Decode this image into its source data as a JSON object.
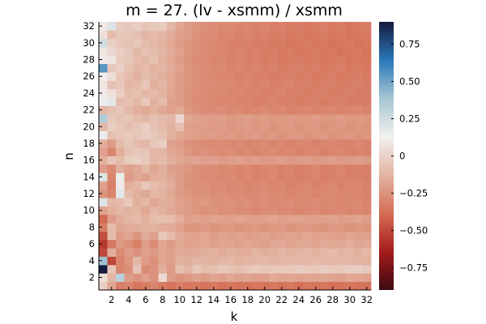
{
  "chart_data": {
    "type": "heatmap",
    "title": "m = 27. (lv - xsmm) / xsmm",
    "xlabel": "k",
    "ylabel": "n",
    "x": [
      1,
      2,
      3,
      4,
      5,
      6,
      7,
      8,
      9,
      10,
      11,
      12,
      13,
      14,
      15,
      16,
      17,
      18,
      19,
      20,
      21,
      22,
      23,
      24,
      25,
      26,
      27,
      28,
      29,
      30,
      31,
      32
    ],
    "y": [
      1,
      2,
      3,
      4,
      5,
      6,
      7,
      8,
      9,
      10,
      11,
      12,
      13,
      14,
      15,
      16,
      17,
      18,
      19,
      20,
      21,
      22,
      23,
      24,
      25,
      26,
      27,
      28,
      29,
      30,
      31,
      32
    ],
    "xticks": [
      2,
      4,
      6,
      8,
      10,
      12,
      14,
      16,
      18,
      20,
      22,
      24,
      26,
      28,
      30,
      32
    ],
    "yticks": [
      2,
      4,
      6,
      8,
      10,
      12,
      14,
      16,
      18,
      20,
      22,
      24,
      26,
      28,
      30,
      32
    ],
    "clim": [
      -0.9,
      0.9
    ],
    "colorbar_ticks": [
      -0.75,
      -0.5,
      -0.25,
      0,
      0.25,
      0.5,
      0.75
    ],
    "colorbar_tick_labels": [
      "−0.75",
      "−0.50",
      "−0.25",
      "0",
      "0.25",
      "0.50",
      "0.75"
    ],
    "colormap": [
      "#3c0911",
      "#a51c1c",
      "#d56d53",
      "#e3b5a3",
      "#f1f0ef",
      "#a6c6d3",
      "#2a78b8",
      "#151a3f"
    ],
    "grid": false,
    "values": [
      [
        -0.02,
        -0.18,
        -0.32,
        -0.3,
        -0.35,
        -0.33,
        -0.3,
        -0.34,
        -0.36,
        -0.33,
        -0.35,
        -0.34,
        -0.36,
        -0.34,
        -0.36,
        -0.35,
        -0.36,
        -0.36,
        -0.35,
        -0.36,
        -0.34,
        -0.36,
        -0.35,
        -0.37,
        -0.35,
        -0.36,
        -0.35,
        -0.37,
        -0.36,
        -0.35,
        -0.36,
        -0.36
      ],
      [
        0.05,
        -0.12,
        0.32,
        -0.22,
        -0.25,
        -0.2,
        -0.25,
        0.02,
        -0.22,
        -0.25,
        -0.23,
        -0.2,
        -0.22,
        -0.19,
        -0.21,
        -0.18,
        -0.2,
        -0.19,
        -0.21,
        -0.2,
        -0.17,
        -0.19,
        -0.18,
        -0.2,
        -0.18,
        -0.19,
        -0.18,
        -0.19,
        -0.2,
        -0.18,
        -0.19,
        -0.2
      ],
      [
        0.9,
        -0.05,
        -0.3,
        -0.26,
        -0.07,
        -0.28,
        -0.25,
        -0.15,
        -0.22,
        -0.08,
        -0.12,
        -0.06,
        -0.1,
        -0.08,
        -0.05,
        -0.07,
        -0.09,
        -0.06,
        -0.04,
        -0.06,
        -0.05,
        -0.04,
        -0.05,
        -0.03,
        -0.04,
        -0.05,
        -0.03,
        -0.04,
        -0.05,
        -0.03,
        -0.02,
        -0.04
      ],
      [
        0.4,
        -0.5,
        -0.3,
        -0.24,
        -0.12,
        -0.22,
        -0.26,
        -0.18,
        -0.2,
        -0.14,
        -0.15,
        -0.12,
        -0.13,
        -0.14,
        -0.12,
        -0.11,
        -0.14,
        -0.13,
        -0.12,
        -0.11,
        -0.13,
        -0.12,
        -0.11,
        -0.12,
        -0.13,
        -0.1,
        -0.12,
        -0.13,
        -0.11,
        -0.12,
        -0.13,
        -0.14
      ],
      [
        -0.5,
        -0.15,
        -0.28,
        -0.22,
        -0.25,
        -0.2,
        -0.22,
        -0.18,
        -0.2,
        -0.16,
        -0.17,
        -0.16,
        -0.15,
        -0.14,
        -0.16,
        -0.14,
        -0.15,
        -0.16,
        -0.13,
        -0.15,
        -0.14,
        -0.12,
        -0.14,
        -0.13,
        -0.12,
        -0.14,
        -0.12,
        -0.1,
        -0.13,
        -0.12,
        -0.14,
        -0.11
      ],
      [
        -0.55,
        -0.35,
        -0.22,
        -0.26,
        -0.32,
        -0.22,
        -0.28,
        -0.18,
        -0.22,
        -0.18,
        -0.2,
        -0.19,
        -0.18,
        -0.2,
        -0.19,
        -0.18,
        -0.2,
        -0.18,
        -0.19,
        -0.2,
        -0.18,
        -0.17,
        -0.19,
        -0.18,
        -0.17,
        -0.19,
        -0.16,
        -0.18,
        -0.17,
        -0.15,
        -0.18,
        -0.17
      ],
      [
        -0.48,
        -0.1,
        -0.22,
        -0.18,
        -0.24,
        -0.16,
        -0.2,
        -0.05,
        -0.1,
        -0.17,
        -0.19,
        -0.2,
        -0.18,
        -0.21,
        -0.19,
        -0.2,
        -0.19,
        -0.21,
        -0.2,
        -0.19,
        -0.21,
        -0.2,
        -0.19,
        -0.2,
        -0.18,
        -0.2,
        -0.19,
        -0.2,
        -0.21,
        -0.19,
        -0.2,
        -0.2
      ],
      [
        -0.32,
        -0.1,
        -0.18,
        -0.16,
        -0.15,
        -0.14,
        -0.14,
        -0.16,
        -0.17,
        -0.2,
        -0.24,
        -0.24,
        -0.23,
        -0.25,
        -0.24,
        -0.23,
        -0.25,
        -0.24,
        -0.23,
        -0.25,
        -0.24,
        -0.23,
        -0.25,
        -0.24,
        -0.23,
        -0.24,
        -0.25,
        -0.23,
        -0.24,
        -0.25,
        -0.24,
        -0.25
      ],
      [
        -0.4,
        -0.22,
        -0.16,
        -0.12,
        -0.1,
        -0.14,
        -0.1,
        -0.08,
        -0.1,
        -0.15,
        -0.2,
        -0.19,
        -0.21,
        -0.19,
        -0.2,
        -0.21,
        -0.19,
        -0.2,
        -0.21,
        -0.2,
        -0.19,
        -0.21,
        -0.2,
        -0.19,
        -0.21,
        -0.2,
        -0.2,
        -0.19,
        -0.21,
        -0.2,
        -0.19,
        -0.21
      ],
      [
        -0.2,
        -0.15,
        -0.12,
        -0.14,
        -0.13,
        -0.18,
        -0.12,
        -0.15,
        -0.18,
        -0.2,
        -0.22,
        -0.24,
        -0.26,
        -0.25,
        -0.27,
        -0.26,
        -0.28,
        -0.27,
        -0.29,
        -0.28,
        -0.27,
        -0.29,
        -0.28,
        -0.3,
        -0.29,
        -0.28,
        -0.3,
        -0.29,
        -0.28,
        -0.3,
        -0.29,
        -0.3
      ],
      [
        0.2,
        -0.12,
        -0.1,
        -0.05,
        -0.15,
        -0.12,
        -0.18,
        -0.15,
        -0.16,
        -0.2,
        -0.22,
        -0.24,
        -0.23,
        -0.25,
        -0.26,
        -0.25,
        -0.27,
        -0.26,
        -0.28,
        -0.27,
        -0.29,
        -0.28,
        -0.27,
        -0.29,
        -0.28,
        -0.27,
        -0.29,
        -0.28,
        -0.3,
        -0.29,
        -0.28,
        -0.3
      ],
      [
        -0.25,
        -0.3,
        0.18,
        -0.1,
        -0.15,
        -0.18,
        -0.12,
        -0.14,
        -0.18,
        -0.22,
        -0.24,
        -0.26,
        -0.25,
        -0.27,
        -0.26,
        -0.28,
        -0.27,
        -0.29,
        -0.28,
        -0.27,
        -0.29,
        -0.28,
        -0.3,
        -0.29,
        -0.28,
        -0.3,
        -0.29,
        -0.28,
        -0.3,
        -0.29,
        -0.3,
        -0.31
      ],
      [
        -0.2,
        -0.32,
        0.1,
        -0.15,
        -0.12,
        -0.05,
        -0.1,
        -0.12,
        -0.16,
        -0.22,
        -0.25,
        -0.27,
        -0.26,
        -0.28,
        -0.27,
        -0.29,
        -0.28,
        -0.3,
        -0.29,
        -0.28,
        -0.3,
        -0.29,
        -0.31,
        -0.3,
        -0.29,
        -0.31,
        -0.3,
        -0.29,
        -0.31,
        -0.3,
        -0.29,
        -0.31
      ],
      [
        0.2,
        -0.3,
        0.15,
        -0.22,
        -0.18,
        -0.2,
        -0.15,
        -0.14,
        -0.18,
        -0.22,
        -0.25,
        -0.26,
        -0.28,
        -0.27,
        -0.29,
        -0.28,
        -0.3,
        -0.29,
        -0.31,
        -0.3,
        -0.29,
        -0.31,
        -0.3,
        -0.32,
        -0.31,
        -0.3,
        -0.32,
        -0.31,
        -0.3,
        -0.32,
        -0.31,
        -0.32
      ],
      [
        -0.22,
        -0.28,
        -0.15,
        -0.2,
        -0.18,
        -0.12,
        -0.18,
        -0.15,
        -0.2,
        -0.22,
        -0.24,
        -0.26,
        -0.27,
        -0.28,
        -0.29,
        -0.28,
        -0.3,
        -0.29,
        -0.31,
        -0.3,
        -0.29,
        -0.31,
        -0.3,
        -0.32,
        -0.31,
        -0.3,
        -0.32,
        -0.31,
        -0.3,
        -0.32,
        -0.31,
        -0.32
      ],
      [
        -0.15,
        -0.05,
        -0.1,
        -0.03,
        -0.02,
        -0.05,
        -0.12,
        -0.1,
        -0.15,
        -0.18,
        -0.2,
        -0.19,
        -0.21,
        -0.2,
        -0.22,
        -0.21,
        -0.2,
        -0.22,
        -0.21,
        -0.23,
        -0.22,
        -0.21,
        -0.23,
        -0.22,
        -0.21,
        -0.23,
        -0.22,
        -0.21,
        -0.23,
        -0.22,
        -0.21,
        -0.23
      ],
      [
        -0.2,
        -0.3,
        -0.15,
        -0.08,
        -0.05,
        -0.06,
        -0.12,
        -0.12,
        -0.18,
        -0.2,
        -0.24,
        -0.26,
        -0.25,
        -0.27,
        -0.28,
        -0.27,
        -0.29,
        -0.28,
        -0.3,
        -0.29,
        -0.28,
        -0.3,
        -0.29,
        -0.31,
        -0.3,
        -0.29,
        -0.31,
        -0.3,
        -0.29,
        -0.31,
        -0.3,
        -0.31
      ],
      [
        -0.15,
        -0.22,
        -0.1,
        -0.06,
        -0.1,
        -0.12,
        -0.05,
        -0.02,
        -0.2,
        -0.22,
        -0.25,
        -0.26,
        -0.27,
        -0.28,
        -0.27,
        -0.29,
        -0.28,
        -0.3,
        -0.29,
        -0.28,
        -0.3,
        -0.29,
        -0.31,
        -0.3,
        -0.29,
        -0.31,
        -0.3,
        -0.29,
        -0.31,
        -0.3,
        -0.29,
        -0.31
      ],
      [
        0.15,
        -0.08,
        -0.06,
        -0.04,
        -0.06,
        -0.03,
        -0.05,
        -0.08,
        -0.14,
        -0.18,
        -0.2,
        -0.21,
        -0.22,
        -0.21,
        -0.23,
        -0.22,
        -0.24,
        -0.23,
        -0.22,
        -0.24,
        -0.23,
        -0.25,
        -0.24,
        -0.23,
        -0.25,
        -0.24,
        -0.23,
        -0.25,
        -0.24,
        -0.23,
        -0.25,
        -0.24
      ],
      [
        -0.12,
        -0.02,
        -0.06,
        -0.1,
        -0.05,
        -0.02,
        -0.08,
        -0.1,
        -0.14,
        -0.08,
        -0.2,
        -0.22,
        -0.21,
        -0.23,
        -0.22,
        -0.24,
        -0.23,
        -0.22,
        -0.24,
        -0.23,
        -0.25,
        -0.24,
        -0.23,
        -0.25,
        -0.24,
        -0.23,
        -0.25,
        -0.24,
        -0.23,
        -0.25,
        -0.24,
        -0.25
      ],
      [
        0.35,
        -0.05,
        -0.08,
        -0.06,
        -0.1,
        -0.12,
        -0.08,
        -0.1,
        -0.12,
        0.02,
        -0.18,
        -0.2,
        -0.21,
        -0.22,
        -0.21,
        -0.23,
        -0.22,
        -0.21,
        -0.23,
        -0.22,
        -0.24,
        -0.23,
        -0.22,
        -0.24,
        -0.23,
        -0.22,
        -0.24,
        -0.23,
        -0.22,
        -0.24,
        -0.23,
        -0.24
      ],
      [
        -0.12,
        -0.08,
        -0.05,
        -0.12,
        -0.15,
        -0.18,
        -0.14,
        -0.18,
        -0.2,
        -0.18,
        -0.24,
        -0.26,
        -0.27,
        -0.28,
        -0.27,
        -0.29,
        -0.28,
        -0.3,
        -0.29,
        -0.28,
        -0.3,
        -0.29,
        -0.31,
        -0.3,
        -0.29,
        -0.31,
        -0.3,
        -0.29,
        -0.31,
        -0.3,
        -0.29,
        -0.31
      ],
      [
        0.15,
        0.18,
        -0.1,
        -0.08,
        -0.12,
        -0.05,
        -0.14,
        -0.1,
        -0.2,
        -0.22,
        -0.25,
        -0.27,
        -0.28,
        -0.29,
        -0.3,
        -0.29,
        -0.31,
        -0.3,
        -0.32,
        -0.31,
        -0.3,
        -0.32,
        -0.31,
        -0.33,
        -0.32,
        -0.31,
        -0.33,
        -0.32,
        -0.31,
        -0.33,
        -0.32,
        -0.33
      ],
      [
        0.1,
        0.05,
        -0.02,
        -0.1,
        -0.08,
        -0.12,
        -0.1,
        -0.14,
        -0.18,
        -0.22,
        -0.25,
        -0.27,
        -0.28,
        -0.29,
        -0.28,
        -0.3,
        -0.29,
        -0.31,
        -0.3,
        -0.32,
        -0.31,
        -0.3,
        -0.32,
        -0.31,
        -0.33,
        -0.32,
        -0.31,
        -0.33,
        -0.32,
        -0.31,
        -0.33,
        -0.32
      ],
      [
        0.08,
        -0.08,
        -0.05,
        -0.12,
        -0.1,
        -0.06,
        -0.15,
        -0.12,
        -0.18,
        -0.22,
        -0.24,
        -0.26,
        -0.27,
        -0.28,
        -0.29,
        -0.28,
        -0.3,
        -0.29,
        -0.31,
        -0.3,
        -0.32,
        -0.31,
        -0.3,
        -0.32,
        -0.31,
        -0.33,
        -0.32,
        -0.31,
        -0.33,
        -0.32,
        -0.31,
        -0.33
      ],
      [
        0.12,
        0.05,
        -0.06,
        -0.1,
        -0.14,
        -0.1,
        -0.12,
        -0.15,
        -0.18,
        -0.22,
        -0.24,
        -0.26,
        -0.28,
        -0.29,
        -0.3,
        -0.29,
        -0.31,
        -0.3,
        -0.32,
        -0.31,
        -0.33,
        -0.32,
        -0.31,
        -0.33,
        -0.32,
        -0.34,
        -0.33,
        -0.32,
        -0.34,
        -0.33,
        -0.32,
        -0.34
      ],
      [
        0.55,
        -0.05,
        -0.02,
        -0.08,
        -0.12,
        -0.1,
        -0.14,
        -0.12,
        -0.16,
        -0.2,
        -0.24,
        -0.26,
        -0.27,
        -0.29,
        -0.28,
        -0.3,
        -0.29,
        -0.31,
        -0.3,
        -0.32,
        -0.31,
        -0.33,
        -0.32,
        -0.31,
        -0.33,
        -0.32,
        -0.34,
        -0.33,
        -0.32,
        -0.34,
        -0.33,
        -0.34
      ],
      [
        0.1,
        0.08,
        -0.04,
        -0.06,
        -0.1,
        -0.12,
        -0.08,
        -0.14,
        -0.18,
        -0.22,
        -0.25,
        -0.27,
        -0.28,
        -0.3,
        -0.29,
        -0.31,
        -0.3,
        -0.32,
        -0.31,
        -0.33,
        -0.32,
        -0.34,
        -0.33,
        -0.32,
        -0.34,
        -0.33,
        -0.35,
        -0.34,
        -0.33,
        -0.35,
        -0.34,
        -0.35
      ],
      [
        0.08,
        0.02,
        -0.02,
        -0.05,
        -0.12,
        -0.08,
        -0.1,
        -0.12,
        -0.16,
        -0.2,
        -0.24,
        -0.26,
        -0.28,
        -0.29,
        -0.3,
        -0.31,
        -0.3,
        -0.32,
        -0.31,
        -0.33,
        -0.32,
        -0.34,
        -0.33,
        -0.35,
        -0.34,
        -0.33,
        -0.35,
        -0.34,
        -0.36,
        -0.35,
        -0.34,
        -0.36
      ],
      [
        0.25,
        -0.02,
        -0.06,
        -0.08,
        -0.04,
        -0.1,
        -0.12,
        -0.14,
        -0.18,
        -0.22,
        -0.24,
        -0.26,
        -0.28,
        -0.29,
        -0.3,
        -0.31,
        -0.32,
        -0.31,
        -0.33,
        -0.32,
        -0.34,
        -0.33,
        -0.35,
        -0.34,
        -0.33,
        -0.35,
        -0.34,
        -0.36,
        -0.35,
        -0.34,
        -0.36,
        -0.35
      ],
      [
        0.05,
        -0.1,
        -0.05,
        -0.06,
        -0.08,
        -0.12,
        -0.1,
        -0.12,
        -0.16,
        -0.2,
        -0.22,
        -0.25,
        -0.27,
        -0.28,
        -0.3,
        -0.29,
        -0.31,
        -0.3,
        -0.32,
        -0.31,
        -0.33,
        -0.32,
        -0.34,
        -0.33,
        -0.35,
        -0.34,
        -0.33,
        -0.35,
        -0.34,
        -0.36,
        -0.35,
        -0.34
      ],
      [
        0.1,
        0.2,
        -0.03,
        -0.05,
        -0.02,
        -0.06,
        -0.04,
        -0.03,
        -0.12,
        -0.18,
        -0.22,
        -0.24,
        -0.26,
        -0.27,
        -0.29,
        -0.28,
        -0.3,
        -0.29,
        -0.31,
        -0.3,
        -0.32,
        -0.31,
        -0.33,
        -0.32,
        -0.34,
        -0.33,
        -0.32,
        -0.34,
        -0.33,
        -0.35,
        -0.34,
        -0.33
      ]
    ]
  }
}
